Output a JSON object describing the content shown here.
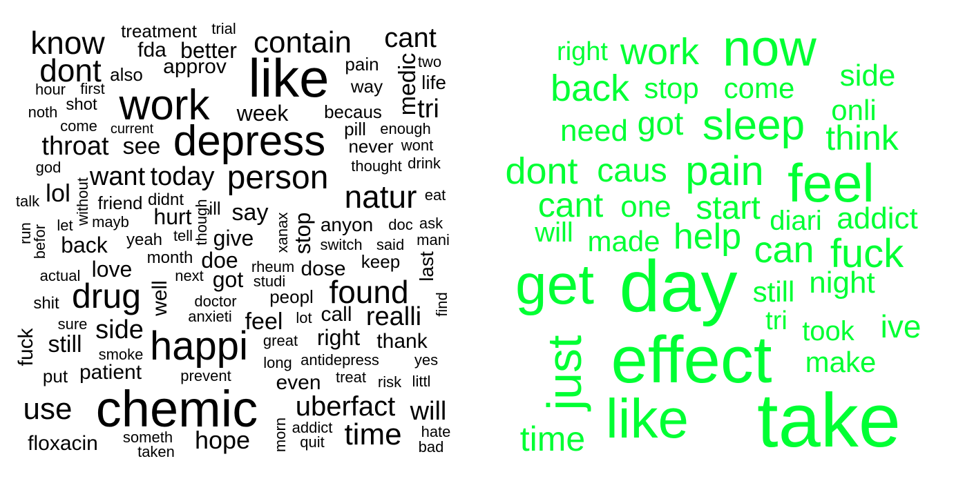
{
  "colors": {
    "left": "#000000",
    "right": "#00ff33"
  },
  "left_cloud": {
    "words": [
      "treatment",
      "trial",
      "know",
      "fda",
      "better",
      "contain",
      "cant",
      "two",
      "dont",
      "approv",
      "pain",
      "medic",
      "also",
      "like",
      "life",
      "hour",
      "first",
      "way",
      "work",
      "shot",
      "tri",
      "noth",
      "week",
      "becaus",
      "come",
      "current",
      "pill",
      "enough",
      "depress",
      "throat",
      "see",
      "never",
      "wont",
      "god",
      "thought",
      "drink",
      "want",
      "today",
      "person",
      "talk",
      "lol",
      "without",
      "natur",
      "eat",
      "friend",
      "didnt",
      "ill",
      "though",
      "say",
      "let",
      "mayb",
      "run",
      "hurt",
      "stop",
      "xanax",
      "anyon",
      "doc",
      "ask",
      "befor",
      "tell",
      "back",
      "yeah",
      "give",
      "switch",
      "said",
      "mani",
      "month",
      "doe",
      "rheum",
      "keep",
      "love",
      "last",
      "actual",
      "next",
      "dose",
      "got",
      "studi",
      "well",
      "drug",
      "shit",
      "doctor",
      "peopl",
      "found",
      "find",
      "anxieti",
      "call",
      "realli",
      "lot",
      "sure",
      "feel",
      "side",
      "fuck",
      "great",
      "right",
      "happi",
      "thank",
      "still",
      "smoke",
      "long",
      "antidepress",
      "yes",
      "patient",
      "prevent",
      "treat",
      "risk",
      "littl",
      "put",
      "even",
      "chemic",
      "use",
      "uberfact",
      "will",
      "morn",
      "addict",
      "floxacin",
      "someth",
      "hope",
      "time",
      "quit",
      "hate",
      "taken",
      "bad"
    ]
  },
  "right_cloud": {
    "words": [
      "right",
      "work",
      "now",
      "side",
      "back",
      "stop",
      "come",
      "onli",
      "need",
      "got",
      "sleep",
      "think",
      "dont",
      "caus",
      "pain",
      "feel",
      "cant",
      "one",
      "start",
      "addict",
      "diari",
      "will",
      "made",
      "help",
      "can",
      "fuck",
      "get",
      "day",
      "still",
      "night",
      "tri",
      "just",
      "ive",
      "took",
      "make",
      "effect",
      "like",
      "take",
      "time"
    ]
  }
}
